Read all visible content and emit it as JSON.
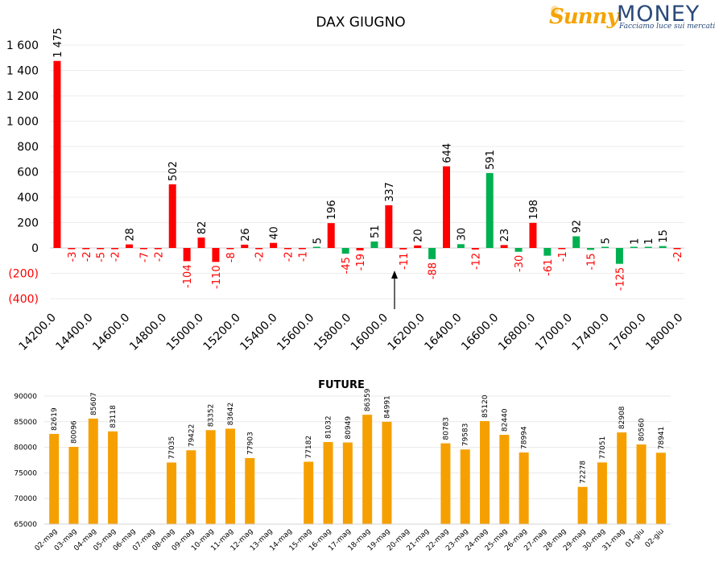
{
  "logo": {
    "brand_a": "Sunny",
    "brand_b": "MONEY",
    "tagline": "Facciamo luce sui mercati",
    "color_brand_a": "#F5A300",
    "color_brand_b": "#2a4a7a"
  },
  "chart_data": [
    {
      "type": "bar",
      "title": "DAX GIUGNO",
      "categories": [
        "14200.0",
        "14400.0",
        "14600.0",
        "14800.0",
        "15000.0",
        "15200.0",
        "15400.0",
        "15600.0",
        "15800.0",
        "16000.0",
        "16200.0",
        "16400.0",
        "16600.0",
        "16800.0",
        "17000.0",
        "17400.0",
        "17600.0",
        "18000.0"
      ],
      "ytick_labels": [
        "(400)",
        "(200)",
        "0",
        "200",
        "400",
        "600",
        "800",
        "1 000",
        "1 200",
        "1 400",
        "1 600"
      ],
      "ylim": [
        -400,
        1600
      ],
      "grid": true,
      "colors": {
        "red": "#FF0000",
        "green": "#00B050"
      },
      "bars": [
        {
          "value": 1475,
          "label": "1 475",
          "color": "red"
        },
        {
          "value": -3,
          "label": "-3",
          "color": "red"
        },
        {
          "value": -2,
          "label": "-2",
          "color": "red"
        },
        {
          "value": -5,
          "label": "-5",
          "color": "red"
        },
        {
          "value": -2,
          "label": "-2",
          "color": "red"
        },
        {
          "value": 28,
          "label": "28",
          "color": "red"
        },
        {
          "value": -7,
          "label": "-7",
          "color": "red"
        },
        {
          "value": -2,
          "label": "-2",
          "color": "red"
        },
        {
          "value": 502,
          "label": "502",
          "color": "red"
        },
        {
          "value": -104,
          "label": "-104",
          "color": "red"
        },
        {
          "value": 82,
          "label": "82",
          "color": "red"
        },
        {
          "value": -110,
          "label": "-110",
          "color": "red"
        },
        {
          "value": -8,
          "label": "-8",
          "color": "red"
        },
        {
          "value": 26,
          "label": "26",
          "color": "red"
        },
        {
          "value": -2,
          "label": "-2",
          "color": "red"
        },
        {
          "value": 40,
          "label": "40",
          "color": "red"
        },
        {
          "value": -2,
          "label": "-2",
          "color": "red"
        },
        {
          "value": -1,
          "label": "-1",
          "color": "red"
        },
        {
          "value": 5,
          "label": "5",
          "color": "green"
        },
        {
          "value": 196,
          "label": "196",
          "color": "red"
        },
        {
          "value": -45,
          "label": "-45",
          "color": "green"
        },
        {
          "value": -19,
          "label": "-19",
          "color": "red"
        },
        {
          "value": 51,
          "label": "51",
          "color": "green"
        },
        {
          "value": 337,
          "label": "337",
          "color": "red"
        },
        {
          "value": -11,
          "label": "-11",
          "color": "red"
        },
        {
          "value": 20,
          "label": "20",
          "color": "red"
        },
        {
          "value": -88,
          "label": "-88",
          "color": "green"
        },
        {
          "value": 644,
          "label": "644",
          "color": "red"
        },
        {
          "value": 30,
          "label": "30",
          "color": "green"
        },
        {
          "value": -12,
          "label": "-12",
          "color": "red"
        },
        {
          "value": 591,
          "label": "591",
          "color": "green"
        },
        {
          "value": 23,
          "label": "23",
          "color": "red"
        },
        {
          "value": -30,
          "label": "-30",
          "color": "green"
        },
        {
          "value": 198,
          "label": "198",
          "color": "red"
        },
        {
          "value": -61,
          "label": "-61",
          "color": "green"
        },
        {
          "value": -1,
          "label": "-1",
          "color": "red"
        },
        {
          "value": 92,
          "label": "92",
          "color": "green"
        },
        {
          "value": -15,
          "label": "-15",
          "color": "green"
        },
        {
          "value": 5,
          "label": "5",
          "color": "green"
        },
        {
          "value": -125,
          "label": "-125",
          "color": "green"
        },
        {
          "value": 1,
          "label": "1",
          "color": "green"
        },
        {
          "value": 1,
          "label": "1",
          "color": "green"
        },
        {
          "value": 15,
          "label": "15",
          "color": "green"
        },
        {
          "value": -2,
          "label": "-2",
          "color": "red"
        }
      ],
      "annotation": {
        "type": "arrow",
        "direction": "up"
      }
    },
    {
      "type": "bar",
      "title": "FUTURE",
      "color": "#F5A000",
      "categories": [
        "02-mag",
        "03-mag",
        "04-mag",
        "05-mag",
        "06-mag",
        "07-mag",
        "08-mag",
        "09-mag",
        "10-mag",
        "11-mag",
        "12-mag",
        "13-mag",
        "14-mag",
        "15-mag",
        "16-mag",
        "17-mag",
        "18-mag",
        "19-mag",
        "20-mag",
        "21-mag",
        "22-mag",
        "23-mag",
        "24-mag",
        "25-mag",
        "26-mag",
        "27-mag",
        "28-mag",
        "29-mag",
        "30-mag",
        "31-mag",
        "01-giu",
        "02-giu"
      ],
      "values": [
        82619,
        80096,
        85607,
        83118,
        null,
        null,
        77035,
        79422,
        83352,
        83642,
        77903,
        null,
        null,
        77182,
        81032,
        80949,
        86359,
        84991,
        null,
        null,
        80783,
        79583,
        85120,
        82440,
        78994,
        null,
        null,
        72278,
        77051,
        82908,
        80560,
        78941
      ],
      "ytick_labels": [
        "65000",
        "70000",
        "75000",
        "80000",
        "85000",
        "90000"
      ],
      "ylim": [
        65000,
        90000
      ],
      "grid": true
    }
  ]
}
